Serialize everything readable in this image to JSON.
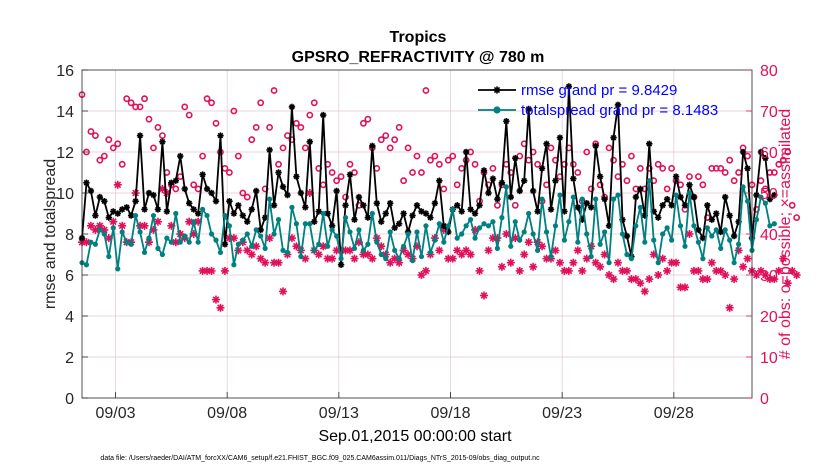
{
  "chart_data": {
    "type": "line",
    "title": "Tropics",
    "subtitle": "GPSRO_REFRACTIVITY @ 780 m",
    "xlabel": "Sep.01,2015 00:00:00 start",
    "ylabel": "rmse and totalspread",
    "ylabel_right": "# of obs: o=possible; ×=assimilated",
    "x_range_days": [
      0.5,
      30.5
    ],
    "ylim": [
      0,
      16
    ],
    "ylim_right": [
      0,
      80
    ],
    "y_ticks": [
      0,
      2,
      4,
      6,
      8,
      10,
      12,
      14,
      16
    ],
    "y_ticks_right": [
      0,
      10,
      20,
      30,
      40,
      50,
      60,
      70,
      80
    ],
    "x_ticks": [
      {
        "day": 2.0,
        "label": "09/03"
      },
      {
        "day": 7.0,
        "label": "09/08"
      },
      {
        "day": 12.0,
        "label": "09/13"
      },
      {
        "day": 17.0,
        "label": "09/18"
      },
      {
        "day": 22.0,
        "label": "09/23"
      },
      {
        "day": 27.0,
        "label": "09/28"
      }
    ],
    "grid": true,
    "series": [
      {
        "name": "rmse grand pr = 9.8429",
        "color": "#000000",
        "axis": "left",
        "values": [
          7.8,
          10.5,
          10.1,
          8.9,
          9.8,
          9.6,
          8.8,
          9.1,
          9.0,
          9.2,
          9.3,
          8.9,
          9.6,
          12.8,
          9.2,
          10.0,
          9.9,
          9.2,
          12.5,
          9.1,
          10.5,
          10.6,
          11.8,
          10.2,
          9.5,
          9.2,
          9.0,
          10.9,
          10.2,
          10.0,
          9.6,
          12.8,
          7.5,
          9.6,
          9.0,
          9.4,
          8.9,
          8.6,
          9.2,
          10.1,
          8.2,
          8.8,
          12.1,
          9.4,
          11.0,
          10.3,
          9.9,
          14.2,
          10.8,
          10.0,
          9.3,
          12.5,
          8.6,
          9.1,
          13.8,
          9.0,
          8.4,
          10.1,
          6.5,
          9.4,
          10.9,
          8.7,
          9.8,
          9.4,
          8.8,
          12.3,
          9.5,
          8.6,
          9.0,
          9.5,
          8.3,
          8.5,
          9.0,
          8.1,
          8.9,
          9.4,
          9.1,
          9.0,
          8.8,
          9.5,
          10.6,
          8.4,
          8.1,
          9.2,
          9.4,
          9.1,
          12.0,
          9.2,
          9.0,
          9.4,
          11.1,
          10.0,
          10.7,
          9.7,
          10.5,
          13.5,
          9.8,
          11.7,
          10.1,
          10.6,
          14.1,
          10.1,
          9.1,
          11.2,
          12.4,
          9.2,
          10.6,
          12.7,
          9.1,
          15.2,
          10.7,
          9.3,
          8.7,
          9.5,
          9.3,
          12.3,
          10.8,
          9.7,
          8.4,
          12.7,
          14.3,
          8.7,
          7.9,
          6.9,
          9.8,
          10.2,
          8.9,
          12.4,
          9.1,
          8.8,
          9.4,
          9.7,
          9.4,
          10.8,
          9.8,
          9.4,
          10.4,
          9.8,
          8.2,
          7.8,
          9.4,
          8.7,
          9.0,
          8.1,
          9.8,
          8.9,
          7.9,
          8.6,
          12.0,
          11.2,
          7.8,
          9.9,
          12.0,
          11.7,
          9.7,
          9.9
        ],
        "legend": {
          "label": "rmse grand pr = 9.8429",
          "marker": "asterisk"
        }
      },
      {
        "name": "totalspread grand pr = 8.1483",
        "color": "#008080",
        "axis": "left",
        "values": [
          6.6,
          6.5,
          7.6,
          7.5,
          8.2,
          8.0,
          6.9,
          8.3,
          6.3,
          8.1,
          7.6,
          7.5,
          8.9,
          8.1,
          7.1,
          7.8,
          8.9,
          7.3,
          7.0,
          7.8,
          7.6,
          9.0,
          7.6,
          7.9,
          7.6,
          8.6,
          7.6,
          9.2,
          8.9,
          8.0,
          7.7,
          7.1,
          8.9,
          8.4,
          6.5,
          7.5,
          7.7,
          8.0,
          7.4,
          8.2,
          7.9,
          7.3,
          9.7,
          8.0,
          8.7,
          7.2,
          7.1,
          9.3,
          8.5,
          6.9,
          8.5,
          8.5,
          7.2,
          7.5,
          9.0,
          7.4,
          8.2,
          7.9,
          6.8,
          8.8,
          8.1,
          7.3,
          8.2,
          7.2,
          7.5,
          9.0,
          7.6,
          7.0,
          6.8,
          8.1,
          7.2,
          6.8,
          7.4,
          8.0,
          6.7,
          8.1,
          6.9,
          8.4,
          7.1,
          7.7,
          8.5,
          7.6,
          8.4,
          9.2,
          7.8,
          8.0,
          8.4,
          8.7,
          7.8,
          8.3,
          8.5,
          8.4,
          8.6,
          7.3,
          8.8,
          10.3,
          7.4,
          8.6,
          7.7,
          8.1,
          9.0,
          8.0,
          7.2,
          9.7,
          8.1,
          6.9,
          8.4,
          9.9,
          7.7,
          8.6,
          9.8,
          7.6,
          9.7,
          8.0,
          6.9,
          9.7,
          7.5,
          8.1,
          6.6,
          9.7,
          9.9,
          8.0,
          7.0,
          6.8,
          8.4,
          9.3,
          7.6,
          10.6,
          7.7,
          6.6,
          8.0,
          8.3,
          7.7,
          9.9,
          8.4,
          7.4,
          10.0,
          8.4,
          7.6,
          6.8,
          8.3,
          7.9,
          8.2,
          7.3,
          8.2,
          7.7,
          6.6,
          7.5,
          10.3,
          9.6,
          7.2,
          8.7,
          9.8,
          9.5,
          8.4,
          8.5
        ],
        "legend": {
          "label": "totalspread grand pr = 8.1483",
          "marker": "circle-filled"
        }
      },
      {
        "name": "# of obs possible",
        "color": "#e0105a",
        "axis": "right",
        "marker": "circle-open",
        "values": [
          74,
          60,
          65,
          64,
          58,
          59,
          63,
          61,
          62,
          57,
          73,
          72,
          71,
          71,
          73,
          68,
          61,
          66,
          64,
          55,
          52,
          51,
          54,
          71,
          69,
          52,
          51,
          59,
          73,
          72,
          67,
          60,
          56,
          55,
          70,
          59,
          50,
          49,
          63,
          66,
          72,
          51,
          66,
          75,
          57,
          61,
          64,
          63,
          67,
          66,
          61,
          69,
          72,
          56,
          52,
          57,
          55,
          53,
          54,
          49,
          57,
          55,
          47,
          67,
          68,
          61,
          56,
          63,
          64,
          61,
          63,
          66,
          53,
          61,
          55,
          59,
          55,
          75,
          58,
          59,
          57,
          51,
          58,
          59,
          52,
          56,
          58,
          60,
          57,
          48,
          55,
          52,
          56,
          47,
          52,
          57,
          55,
          47,
          59,
          62,
          58,
          60,
          57,
          48,
          52,
          61,
          58,
          54,
          57,
          61,
          57,
          55,
          48,
          60,
          51,
          62,
          52,
          49,
          61,
          58,
          54,
          57,
          53,
          59,
          51,
          56,
          51,
          56,
          53,
          57,
          56,
          51,
          56,
          53,
          52,
          46,
          54,
          49,
          54,
          52,
          44,
          56,
          56,
          56,
          55,
          58,
          53,
          55,
          61,
          59,
          52,
          46,
          53,
          51,
          55,
          55,
          57,
          58,
          60,
          47,
          44
        ],
        "day_offset": 0.5
      },
      {
        "name": "# of obs assimilated",
        "color": "#e0105a",
        "axis": "right",
        "marker": "asterisk",
        "values": [
          38,
          38,
          42,
          41,
          42,
          41,
          39,
          43,
          52,
          42,
          38,
          38,
          50,
          42,
          42,
          38,
          41,
          43,
          51,
          50,
          42,
          38,
          40,
          39,
          43,
          40,
          43,
          31,
          31,
          31,
          24,
          22,
          31,
          39,
          39,
          36,
          38,
          36,
          35,
          37,
          34,
          33,
          39,
          33,
          33,
          26,
          35,
          39,
          37,
          36,
          34,
          50,
          36,
          35,
          37,
          34,
          34,
          36,
          36,
          36,
          36,
          34,
          38,
          35,
          35,
          34,
          39,
          37,
          35,
          33,
          34,
          33,
          36,
          35,
          34,
          37,
          30,
          31,
          35,
          39,
          36,
          41,
          34,
          34,
          36,
          35,
          36,
          35,
          41,
          31,
          25,
          36,
          39,
          39,
          32,
          40,
          33,
          39,
          31,
          35,
          38,
          32,
          38,
          37,
          34,
          34,
          36,
          33,
          31,
          31,
          33,
          36,
          31,
          34,
          37,
          33,
          32,
          35,
          30,
          29,
          33,
          31,
          31,
          29,
          29,
          28,
          26,
          29,
          35,
          30,
          34,
          31,
          33,
          33,
          27,
          27,
          40,
          31,
          31,
          29,
          29,
          33,
          31,
          31,
          30,
          22,
          29,
          36,
          32,
          34,
          31,
          30,
          31,
          30,
          29,
          29,
          31,
          34,
          28,
          31,
          30
        ],
        "day_offset": 0.5
      }
    ]
  },
  "footer": "data file: /Users/raeder/DAI/ATM_forcXX/CAM6_setup/f.e21.FHIST_BGC.f09_025.CAM6assim.011/Diags_NTrS_2015-09/obs_diag_output.nc"
}
